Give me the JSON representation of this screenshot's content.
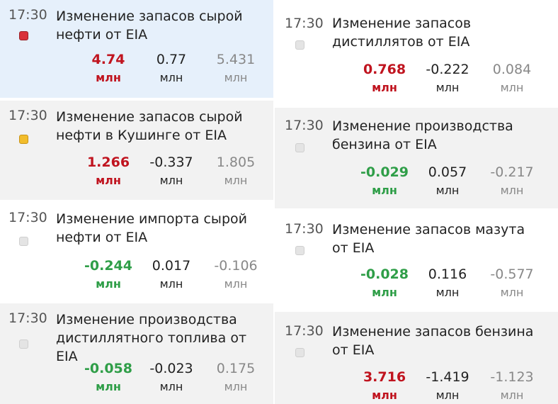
{
  "events": [
    {
      "time": "17:30",
      "title": "Изменение запасов сырой нефти от EIA",
      "importance": "high",
      "actual": "4.74",
      "actual_unit": "млн",
      "actual_color": "red",
      "forecast": "0.77",
      "forecast_unit": "млн",
      "previous": "5.431",
      "previous_unit": "млн",
      "bg": "#e6f0fb"
    },
    {
      "time": "17:30",
      "title": "Изменение запасов сырой нефти в Кушинге от EIA",
      "importance": "medium",
      "actual": "1.266",
      "actual_unit": "млн",
      "actual_color": "red",
      "forecast": "-0.337",
      "forecast_unit": "млн",
      "previous": "1.805",
      "previous_unit": "млн",
      "bg": "#f2f2f2"
    },
    {
      "time": "17:30",
      "title": "Изменение импорта сырой нефти от EIA",
      "importance": "low",
      "actual": "-0.244",
      "actual_unit": "млн",
      "actual_color": "green",
      "forecast": "0.017",
      "forecast_unit": "млн",
      "previous": "-0.106",
      "previous_unit": "млн",
      "bg": "#ffffff"
    },
    {
      "time": "17:30",
      "title": "Изменение производства дистиллятного топлива от EIA",
      "importance": "low",
      "actual": "-0.058",
      "actual_unit": "млн",
      "actual_color": "green",
      "forecast": "-0.023",
      "forecast_unit": "млн",
      "previous": "0.175",
      "previous_unit": "млн",
      "bg": "#f2f2f2"
    },
    {
      "time": "17:30",
      "title": "Изменение запасов дистиллятов от EIA",
      "importance": "low",
      "actual": "0.768",
      "actual_unit": "млн",
      "actual_color": "red",
      "forecast": "-0.222",
      "forecast_unit": "млн",
      "previous": "0.084",
      "previous_unit": "млн",
      "bg": "#ffffff"
    },
    {
      "time": "17:30",
      "title": "Изменение производства бензина от EIA",
      "importance": "low",
      "actual": "-0.029",
      "actual_unit": "млн",
      "actual_color": "green",
      "forecast": "0.057",
      "forecast_unit": "млн",
      "previous": "-0.217",
      "previous_unit": "млн",
      "bg": "#f2f2f2"
    },
    {
      "time": "17:30",
      "title": "Изменение запасов мазута от EIA",
      "importance": "low",
      "actual": "-0.028",
      "actual_unit": "млн",
      "actual_color": "green",
      "forecast": "0.116",
      "forecast_unit": "млн",
      "previous": "-0.577",
      "previous_unit": "млн",
      "bg": "#ffffff"
    },
    {
      "time": "17:30",
      "title": "Изменение запасов бензина от EIA",
      "importance": "low",
      "actual": "3.716",
      "actual_unit": "млн",
      "actual_color": "red",
      "forecast": "-1.419",
      "forecast_unit": "млн",
      "previous": "-1.123",
      "previous_unit": "млн",
      "bg": "#f2f2f2"
    }
  ]
}
